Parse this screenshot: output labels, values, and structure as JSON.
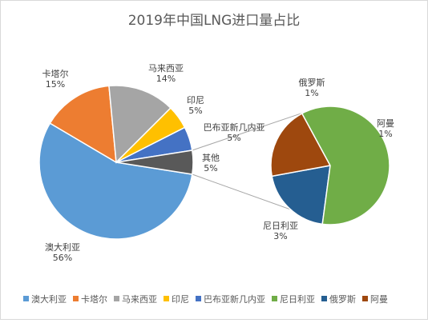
{
  "chart_data": {
    "type": "pie",
    "subtype": "pie-of-pie",
    "title": "2019年中国LNG进口量占比",
    "main_pie": [
      {
        "name": "澳大利亚",
        "value": 56,
        "label": "56%",
        "color": "#5b9bd5"
      },
      {
        "name": "卡塔尔",
        "value": 15,
        "label": "15%",
        "color": "#ed7d31"
      },
      {
        "name": "马来西亚",
        "value": 14,
        "label": "14%",
        "color": "#a5a5a5"
      },
      {
        "name": "印尼",
        "value": 5,
        "label": "5%",
        "color": "#ffc000"
      },
      {
        "name": "巴布亚新几内亚",
        "value": 5,
        "label": "5%",
        "color": "#4472c4"
      },
      {
        "name": "其他",
        "value": 5,
        "label": "5%",
        "color": "#595959"
      }
    ],
    "secondary_pie": [
      {
        "name": "俄罗斯",
        "value": 1,
        "label": "1%",
        "color": "#255e91"
      },
      {
        "name": "阿曼",
        "value": 1,
        "label": "1%",
        "color": "#9e480e"
      },
      {
        "name": "尼日利亚",
        "value": 3,
        "label": "3%",
        "color": "#70ad47"
      }
    ],
    "legend": {
      "position": "bottom",
      "entries": [
        {
          "name": "澳大利亚",
          "color": "#5b9bd5"
        },
        {
          "name": "卡塔尔",
          "color": "#ed7d31"
        },
        {
          "name": "马来西亚",
          "color": "#a5a5a5"
        },
        {
          "name": "印尼",
          "color": "#ffc000"
        },
        {
          "name": "巴布亚新几内亚",
          "color": "#4472c4"
        },
        {
          "name": "尼日利亚",
          "color": "#70ad47"
        },
        {
          "name": "俄罗斯",
          "color": "#255e91"
        },
        {
          "name": "阿曼",
          "color": "#9e480e"
        }
      ]
    }
  }
}
